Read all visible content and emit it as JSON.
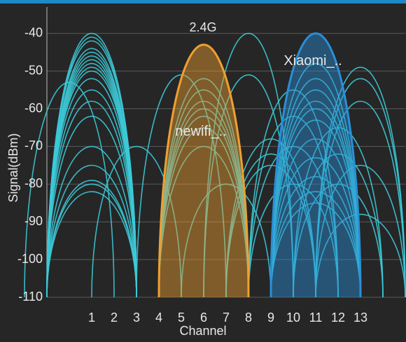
{
  "chart_data": {
    "type": "arc",
    "title": "2.4G",
    "x_label": "Channel",
    "y_label": "Signal(dBm)",
    "xlim": [
      -1,
      15
    ],
    "xticks": [
      1,
      2,
      3,
      4,
      5,
      6,
      7,
      8,
      9,
      10,
      11,
      12,
      13
    ],
    "ylim": [
      -110,
      -33
    ],
    "yticks": [
      -40,
      -50,
      -60,
      -70,
      -80,
      -90,
      -100,
      -110
    ],
    "grid": true,
    "series": [
      {
        "name": "newifi_..",
        "color": "#f0a030",
        "x": [
          6
        ],
        "values": [
          -43
        ]
      },
      {
        "name": "Xiaomi_..",
        "color": "#2a8fd8",
        "x": [
          11
        ],
        "values": [
          -40
        ]
      },
      {
        "color": "#3ccad8",
        "x": [
          1,
          1,
          1,
          1,
          1,
          1,
          1,
          1,
          1,
          1,
          1,
          1,
          1,
          1,
          1,
          1,
          1,
          1,
          1,
          0,
          3,
          5,
          6,
          6,
          6,
          6,
          6,
          6,
          6,
          7,
          8,
          8,
          9,
          9,
          9,
          10,
          10,
          10,
          10,
          11,
          11,
          11,
          11,
          11,
          11,
          11,
          11,
          11,
          11,
          11,
          12,
          12,
          12,
          13,
          13,
          13,
          13,
          13
        ],
        "values": [
          -40,
          -41,
          -42,
          -44,
          -45,
          -46,
          -47,
          -48,
          -49,
          -50,
          -52,
          -55,
          -58,
          -62,
          -70,
          -75,
          -79,
          -80,
          -82,
          -53,
          -70,
          -51,
          -52,
          -55,
          -58,
          -60,
          -62,
          -65,
          -70,
          -80,
          -40,
          -51,
          -68,
          -72,
          -75,
          -55,
          -62,
          -70,
          -80,
          -48,
          -52,
          -55,
          -58,
          -60,
          -63,
          -68,
          -73,
          -78,
          -82,
          -85,
          -65,
          -72,
          -80,
          -49,
          -52,
          -58,
          -75,
          -88
        ]
      }
    ]
  }
}
